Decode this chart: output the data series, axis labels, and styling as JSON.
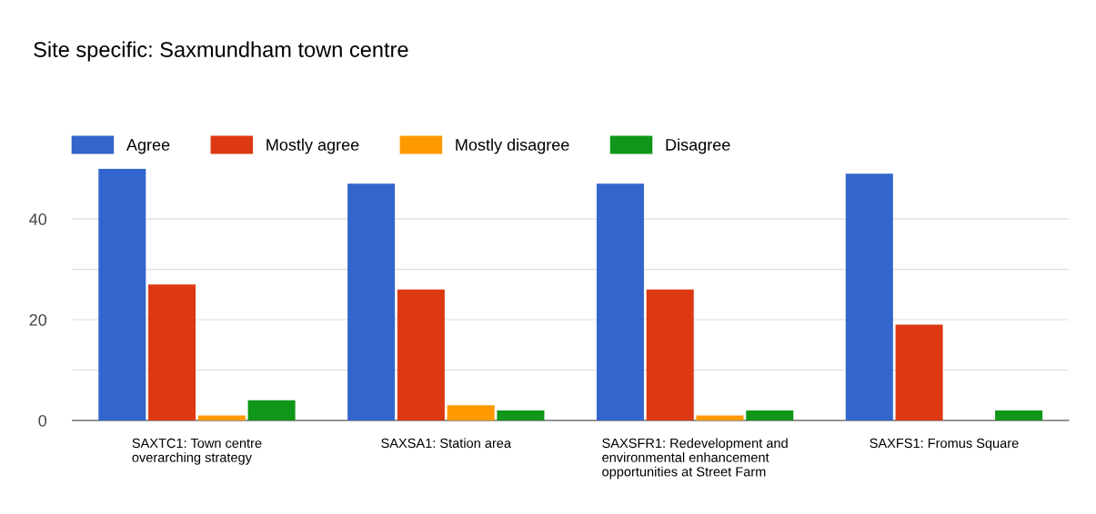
{
  "chart_data": {
    "type": "bar",
    "title": "Site specific: Saxmundham town centre",
    "categories": [
      "SAXTC1: Town centre\noverarching strategy",
      "SAXSA1: Station area",
      "SAXSFR1: Redevelopment and\nenvironmental enhancement\nopportunities at Street Farm",
      "SAXFS1: Fromus Square"
    ],
    "series": [
      {
        "name": "Agree",
        "color": "#3366cc",
        "values": [
          50,
          47,
          47,
          49
        ]
      },
      {
        "name": "Mostly agree",
        "color": "#dc3912",
        "values": [
          27,
          26,
          26,
          19
        ]
      },
      {
        "name": "Mostly disagree",
        "color": "#ff9900",
        "values": [
          1,
          3,
          1,
          0
        ]
      },
      {
        "name": "Disagree",
        "color": "#109618",
        "values": [
          4,
          2,
          2,
          2
        ]
      }
    ],
    "ylim": [
      0,
      50
    ],
    "yticks": [
      0,
      {
        "value": 10,
        "label": null
      },
      20,
      {
        "value": 30,
        "label": null
      },
      40
    ],
    "grid": "y",
    "legend": "top left"
  }
}
